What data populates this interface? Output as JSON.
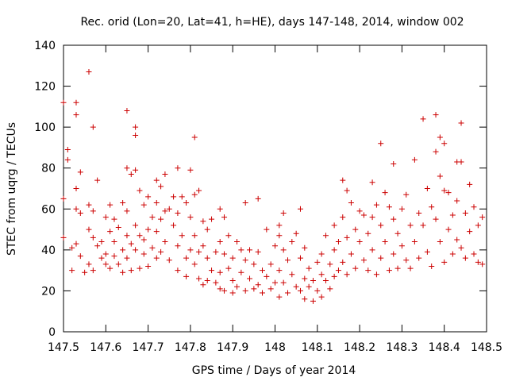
{
  "chart_data": {
    "type": "scatter",
    "title": "Rec. orid (Lon=20, Lat=41, h=HE), days 147-148, 2014, window 002",
    "xlabel": "GPS time / Days of year 2014",
    "ylabel": "STEC from uqrg / TECUs",
    "xlim": [
      147.5,
      148.5
    ],
    "ylim": [
      0,
      140
    ],
    "xticks": [
      147.5,
      147.6,
      147.7,
      147.8,
      147.9,
      148.0,
      148.1,
      148.2,
      148.3,
      148.4,
      148.5
    ],
    "xtick_labels": [
      "147.5",
      "147.6",
      "147.7",
      "147.8",
      "147.9",
      "148",
      "148.1",
      "148.2",
      "148.3",
      "148.4",
      "148.5"
    ],
    "yticks": [
      0,
      20,
      40,
      60,
      80,
      100,
      120,
      140
    ],
    "ytick_labels": [
      "0",
      "20",
      "40",
      "60",
      "80",
      "100",
      "120",
      "140"
    ],
    "grid": false,
    "legend": "none",
    "marker": "plus",
    "color": "#cc0000",
    "points": [
      [
        147.5,
        112
      ],
      [
        147.5,
        65
      ],
      [
        147.5,
        46
      ],
      [
        147.51,
        89
      ],
      [
        147.51,
        84
      ],
      [
        147.52,
        41
      ],
      [
        147.52,
        30
      ],
      [
        147.53,
        112
      ],
      [
        147.53,
        106
      ],
      [
        147.53,
        70
      ],
      [
        147.53,
        60
      ],
      [
        147.53,
        43
      ],
      [
        147.54,
        78
      ],
      [
        147.54,
        58
      ],
      [
        147.54,
        37
      ],
      [
        147.55,
        29
      ],
      [
        147.56,
        127
      ],
      [
        147.56,
        62
      ],
      [
        147.56,
        50
      ],
      [
        147.56,
        33
      ],
      [
        147.57,
        100
      ],
      [
        147.57,
        59
      ],
      [
        147.57,
        46
      ],
      [
        147.57,
        30
      ],
      [
        147.58,
        74
      ],
      [
        147.58,
        42
      ],
      [
        147.59,
        44
      ],
      [
        147.59,
        36
      ],
      [
        147.6,
        56
      ],
      [
        147.6,
        38
      ],
      [
        147.6,
        33
      ],
      [
        147.61,
        62
      ],
      [
        147.61,
        49
      ],
      [
        147.61,
        31
      ],
      [
        147.62,
        55
      ],
      [
        147.62,
        44
      ],
      [
        147.62,
        37
      ],
      [
        147.63,
        51
      ],
      [
        147.63,
        33
      ],
      [
        147.64,
        63
      ],
      [
        147.64,
        40
      ],
      [
        147.64,
        29
      ],
      [
        147.65,
        108
      ],
      [
        147.65,
        80
      ],
      [
        147.65,
        59
      ],
      [
        147.65,
        47
      ],
      [
        147.65,
        36
      ],
      [
        147.66,
        77
      ],
      [
        147.66,
        43
      ],
      [
        147.66,
        30
      ],
      [
        147.67,
        100
      ],
      [
        147.67,
        96
      ],
      [
        147.67,
        79
      ],
      [
        147.67,
        52
      ],
      [
        147.67,
        40
      ],
      [
        147.68,
        69
      ],
      [
        147.68,
        47
      ],
      [
        147.68,
        31
      ],
      [
        147.69,
        62
      ],
      [
        147.69,
        45
      ],
      [
        147.69,
        38
      ],
      [
        147.7,
        66
      ],
      [
        147.7,
        50
      ],
      [
        147.7,
        32
      ],
      [
        147.71,
        56
      ],
      [
        147.71,
        41
      ],
      [
        147.72,
        74
      ],
      [
        147.72,
        63
      ],
      [
        147.72,
        49
      ],
      [
        147.72,
        36
      ],
      [
        147.73,
        71
      ],
      [
        147.73,
        55
      ],
      [
        147.73,
        39
      ],
      [
        147.74,
        77
      ],
      [
        147.74,
        59
      ],
      [
        147.74,
        44
      ],
      [
        147.75,
        60
      ],
      [
        147.75,
        35
      ],
      [
        147.76,
        66
      ],
      [
        147.76,
        52
      ],
      [
        147.77,
        80
      ],
      [
        147.77,
        58
      ],
      [
        147.77,
        42
      ],
      [
        147.77,
        30
      ],
      [
        147.78,
        66
      ],
      [
        147.78,
        47
      ],
      [
        147.79,
        63
      ],
      [
        147.79,
        36
      ],
      [
        147.79,
        27
      ],
      [
        147.8,
        79
      ],
      [
        147.8,
        56
      ],
      [
        147.8,
        40
      ],
      [
        147.81,
        95
      ],
      [
        147.81,
        67
      ],
      [
        147.81,
        47
      ],
      [
        147.81,
        33
      ],
      [
        147.82,
        69
      ],
      [
        147.82,
        39
      ],
      [
        147.82,
        26
      ],
      [
        147.83,
        54
      ],
      [
        147.83,
        42
      ],
      [
        147.83,
        23
      ],
      [
        147.84,
        50
      ],
      [
        147.84,
        36
      ],
      [
        147.84,
        25
      ],
      [
        147.85,
        55
      ],
      [
        147.85,
        30
      ],
      [
        147.86,
        39
      ],
      [
        147.86,
        24
      ],
      [
        147.87,
        60
      ],
      [
        147.87,
        44
      ],
      [
        147.87,
        29
      ],
      [
        147.87,
        21
      ],
      [
        147.88,
        56
      ],
      [
        147.88,
        38
      ],
      [
        147.88,
        20
      ],
      [
        147.89,
        47
      ],
      [
        147.89,
        31
      ],
      [
        147.9,
        36
      ],
      [
        147.9,
        25
      ],
      [
        147.9,
        19
      ],
      [
        147.91,
        44
      ],
      [
        147.91,
        22
      ],
      [
        147.92,
        40
      ],
      [
        147.92,
        29
      ],
      [
        147.93,
        63
      ],
      [
        147.93,
        35
      ],
      [
        147.93,
        20
      ],
      [
        147.94,
        40
      ],
      [
        147.94,
        26
      ],
      [
        147.95,
        33
      ],
      [
        147.95,
        21
      ],
      [
        147.96,
        65
      ],
      [
        147.96,
        39
      ],
      [
        147.96,
        23
      ],
      [
        147.97,
        30
      ],
      [
        147.97,
        19
      ],
      [
        147.98,
        50
      ],
      [
        147.98,
        27
      ],
      [
        147.99,
        33
      ],
      [
        147.99,
        21
      ],
      [
        148.0,
        42
      ],
      [
        148.0,
        24
      ],
      [
        148.01,
        52
      ],
      [
        148.01,
        47
      ],
      [
        148.01,
        30
      ],
      [
        148.01,
        17
      ],
      [
        148.02,
        58
      ],
      [
        148.02,
        40
      ],
      [
        148.02,
        24
      ],
      [
        148.03,
        35
      ],
      [
        148.03,
        19
      ],
      [
        148.04,
        44
      ],
      [
        148.04,
        28
      ],
      [
        148.05,
        48
      ],
      [
        148.05,
        22
      ],
      [
        148.06,
        60
      ],
      [
        148.06,
        36
      ],
      [
        148.06,
        20
      ],
      [
        148.07,
        41
      ],
      [
        148.07,
        26
      ],
      [
        148.07,
        16
      ],
      [
        148.08,
        31
      ],
      [
        148.08,
        22
      ],
      [
        148.09,
        25
      ],
      [
        148.09,
        15
      ],
      [
        148.1,
        34
      ],
      [
        148.1,
        20
      ],
      [
        148.11,
        38
      ],
      [
        148.11,
        28
      ],
      [
        148.11,
        17
      ],
      [
        148.12,
        47
      ],
      [
        148.12,
        25
      ],
      [
        148.13,
        33
      ],
      [
        148.13,
        21
      ],
      [
        148.14,
        52
      ],
      [
        148.14,
        40
      ],
      [
        148.14,
        27
      ],
      [
        148.15,
        44
      ],
      [
        148.15,
        30
      ],
      [
        148.16,
        74
      ],
      [
        148.16,
        56
      ],
      [
        148.16,
        34
      ],
      [
        148.17,
        69
      ],
      [
        148.17,
        46
      ],
      [
        148.17,
        28
      ],
      [
        148.18,
        63
      ],
      [
        148.18,
        38
      ],
      [
        148.19,
        50
      ],
      [
        148.19,
        31
      ],
      [
        148.2,
        59
      ],
      [
        148.2,
        44
      ],
      [
        148.21,
        57
      ],
      [
        148.21,
        35
      ],
      [
        148.22,
        48
      ],
      [
        148.22,
        30
      ],
      [
        148.23,
        73
      ],
      [
        148.23,
        56
      ],
      [
        148.23,
        40
      ],
      [
        148.24,
        62
      ],
      [
        148.24,
        28
      ],
      [
        148.25,
        92
      ],
      [
        148.25,
        52
      ],
      [
        148.25,
        36
      ],
      [
        148.26,
        68
      ],
      [
        148.26,
        44
      ],
      [
        148.27,
        61
      ],
      [
        148.27,
        30
      ],
      [
        148.28,
        82
      ],
      [
        148.28,
        55
      ],
      [
        148.28,
        38
      ],
      [
        148.29,
        48
      ],
      [
        148.29,
        31
      ],
      [
        148.3,
        60
      ],
      [
        148.3,
        42
      ],
      [
        148.31,
        67
      ],
      [
        148.31,
        35
      ],
      [
        148.32,
        52
      ],
      [
        148.32,
        31
      ],
      [
        148.33,
        84
      ],
      [
        148.33,
        44
      ],
      [
        148.34,
        58
      ],
      [
        148.34,
        36
      ],
      [
        148.35,
        104
      ],
      [
        148.35,
        52
      ],
      [
        148.36,
        70
      ],
      [
        148.36,
        39
      ],
      [
        148.37,
        61
      ],
      [
        148.37,
        32
      ],
      [
        148.38,
        106
      ],
      [
        148.38,
        88
      ],
      [
        148.38,
        55
      ],
      [
        148.39,
        95
      ],
      [
        148.39,
        76
      ],
      [
        148.39,
        44
      ],
      [
        148.4,
        92
      ],
      [
        148.4,
        69
      ],
      [
        148.4,
        34
      ],
      [
        148.41,
        68
      ],
      [
        148.41,
        50
      ],
      [
        148.42,
        57
      ],
      [
        148.42,
        38
      ],
      [
        148.43,
        83
      ],
      [
        148.43,
        64
      ],
      [
        148.43,
        45
      ],
      [
        148.44,
        102
      ],
      [
        148.44,
        83
      ],
      [
        148.44,
        41
      ],
      [
        148.45,
        58
      ],
      [
        148.45,
        36
      ],
      [
        148.46,
        72
      ],
      [
        148.46,
        49
      ],
      [
        148.47,
        61
      ],
      [
        148.47,
        38
      ],
      [
        148.48,
        52
      ],
      [
        148.48,
        34
      ],
      [
        148.49,
        56
      ],
      [
        148.49,
        33
      ]
    ]
  }
}
